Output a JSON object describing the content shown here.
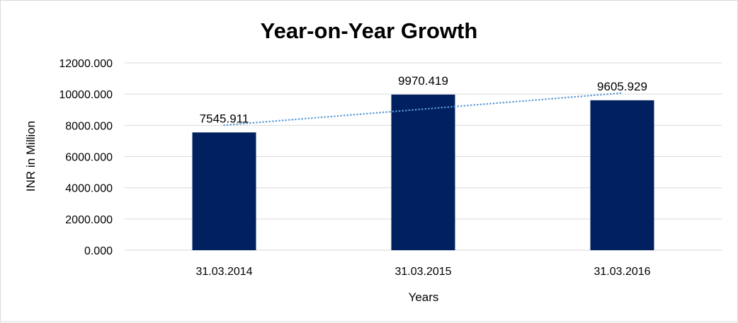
{
  "chart_data": {
    "type": "bar",
    "title": "Year-on-Year Growth",
    "xlabel": "Years",
    "ylabel": "INR in Million",
    "categories": [
      "31.03.2014",
      "31.03.2015",
      "31.03.2016"
    ],
    "values": [
      7545.911,
      9970.419,
      9605.929
    ],
    "data_labels": [
      "7545.911",
      "9970.419",
      "9605.929"
    ],
    "ylim": [
      0,
      12000
    ],
    "yticks": [
      "0.000",
      "2000.000",
      "4000.000",
      "6000.000",
      "8000.000",
      "10000.000",
      "12000.000"
    ],
    "grid": true,
    "trendline": "linear",
    "colors": {
      "bar": "#002060",
      "trendline": "#5B9BD5",
      "grid": "#d9d9d9"
    }
  }
}
